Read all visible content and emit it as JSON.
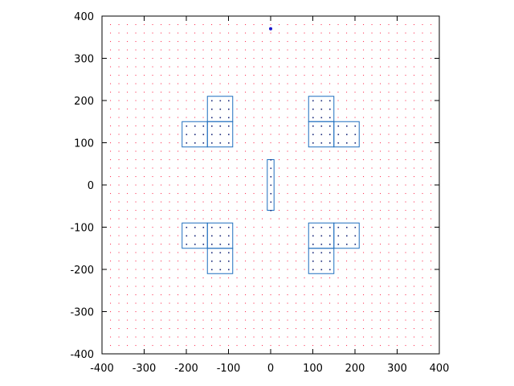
{
  "chart_data": {
    "type": "scatter",
    "title": "",
    "xlabel": "",
    "ylabel": "",
    "xlim": [
      -400,
      400
    ],
    "ylim": [
      -400,
      400
    ],
    "xticks": [
      -400,
      -300,
      -200,
      -100,
      0,
      100,
      200,
      300,
      400
    ],
    "yticks": [
      -400,
      -300,
      -200,
      -100,
      0,
      100,
      200,
      300,
      400
    ],
    "xtick_labels": [
      "-400",
      "-300",
      "-200",
      "-100",
      "0",
      "100",
      "200",
      "300",
      "400"
    ],
    "ytick_labels": [
      "-400",
      "-300",
      "-200",
      "-100",
      "0",
      "100",
      "200",
      "300",
      "400"
    ],
    "grid": false,
    "background_points": {
      "color": "#ff3b5c",
      "x_range": [
        -380,
        380
      ],
      "y_range": [
        -380,
        380
      ],
      "step": 20
    },
    "rectangles": [
      {
        "x": [
          -210,
          -150
        ],
        "y": [
          90,
          150
        ]
      },
      {
        "x": [
          -150,
          -90
        ],
        "y": [
          90,
          150
        ]
      },
      {
        "x": [
          -150,
          -90
        ],
        "y": [
          150,
          210
        ]
      },
      {
        "x": [
          90,
          150
        ],
        "y": [
          90,
          150
        ]
      },
      {
        "x": [
          150,
          210
        ],
        "y": [
          90,
          150
        ]
      },
      {
        "x": [
          90,
          150
        ],
        "y": [
          150,
          210
        ]
      },
      {
        "x": [
          -210,
          -150
        ],
        "y": [
          -150,
          -90
        ]
      },
      {
        "x": [
          -150,
          -90
        ],
        "y": [
          -150,
          -90
        ]
      },
      {
        "x": [
          -150,
          -90
        ],
        "y": [
          -210,
          -150
        ]
      },
      {
        "x": [
          90,
          150
        ],
        "y": [
          -150,
          -90
        ]
      },
      {
        "x": [
          150,
          210
        ],
        "y": [
          -150,
          -90
        ]
      },
      {
        "x": [
          90,
          150
        ],
        "y": [
          -210,
          -150
        ]
      },
      {
        "x": [
          -8,
          8
        ],
        "y": [
          -60,
          60
        ]
      }
    ],
    "rectangle_color": "#1f6fbf",
    "inner_point_color": "#1c2a7a",
    "highlight_point": {
      "x": 0,
      "y": 370,
      "color": "#1a1acc"
    }
  }
}
